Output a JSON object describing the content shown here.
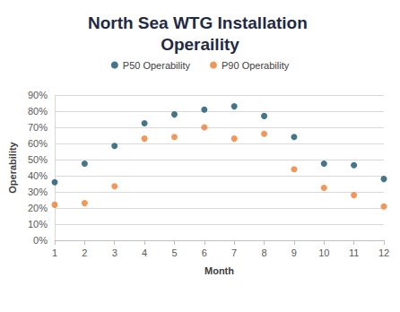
{
  "chart_data": {
    "type": "scatter",
    "title": "North Sea WTG Installation Operaility",
    "x_label": "Month",
    "y_label": "Operability",
    "x": [
      1,
      2,
      3,
      4,
      5,
      6,
      7,
      8,
      9,
      10,
      11,
      12
    ],
    "series": [
      {
        "name": "P50 Operability",
        "color": "#16536b",
        "marker": "circle",
        "values": [
          36,
          47.5,
          58.5,
          72.5,
          78,
          81,
          83,
          77,
          64,
          47.5,
          46.5,
          38
        ]
      },
      {
        "name": "P90 Operability",
        "color": "#ed7d31",
        "marker": "circle",
        "values": [
          22,
          23,
          33.5,
          63,
          64,
          70,
          63,
          66,
          44,
          32.5,
          28,
          21
        ]
      }
    ],
    "xlim": [
      1,
      12
    ],
    "xticks": [
      1,
      2,
      3,
      4,
      5,
      6,
      7,
      8,
      9,
      10,
      11,
      12
    ],
    "ylim": [
      0,
      90
    ],
    "yticks": [
      {
        "value": 0,
        "label": "0%"
      },
      {
        "value": 10,
        "label": "10%"
      },
      {
        "value": 20,
        "label": "20%"
      },
      {
        "value": 30,
        "label": "30%"
      },
      {
        "value": 40,
        "label": "40%"
      },
      {
        "value": 50,
        "label": "50%"
      },
      {
        "value": 60,
        "label": "60%"
      },
      {
        "value": 70,
        "label": "70%"
      },
      {
        "value": 80,
        "label": "80%"
      },
      {
        "value": 90,
        "label": "90%"
      }
    ],
    "grid": true,
    "legend": "top"
  }
}
